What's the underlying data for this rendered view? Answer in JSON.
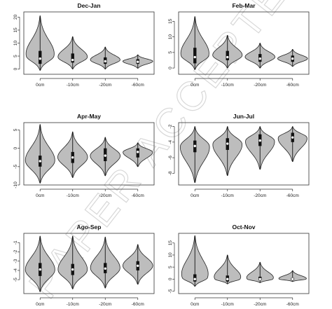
{
  "watermark": "PAPER ACCEPTED",
  "chart_data": [
    {
      "type": "violin",
      "title": "Dec-Jan",
      "categories": [
        "0cm",
        "-10cm",
        "-20cm",
        "-60cm"
      ],
      "ylim": [
        -2,
        22
      ],
      "yticks": [
        0,
        5,
        10,
        15,
        20
      ],
      "series": [
        {
          "category": "0cm",
          "min": -0.5,
          "max": 20.5,
          "q1": 2.0,
          "median": 4.0,
          "q3": 7.0,
          "mode": 5.0
        },
        {
          "category": "-10cm",
          "min": 0.0,
          "max": 12.5,
          "q1": 2.5,
          "median": 3.5,
          "q3": 6.0,
          "mode": 4.5
        },
        {
          "category": "-20cm",
          "min": 0.0,
          "max": 8.5,
          "q1": 2.0,
          "median": 3.0,
          "q3": 4.5,
          "mode": 3.5
        },
        {
          "category": "-60cm",
          "min": 0.3,
          "max": 5.5,
          "q1": 2.0,
          "median": 2.8,
          "q3": 3.8,
          "mode": 3.0
        }
      ]
    },
    {
      "type": "violin",
      "title": "Feb-Mar",
      "categories": [
        "0cm",
        "-10cm",
        "-20cm",
        "-60cm"
      ],
      "ylim": [
        -2,
        18
      ],
      "yticks": [
        0,
        5,
        10,
        15
      ],
      "series": [
        {
          "category": "0cm",
          "min": -0.5,
          "max": 16.5,
          "q1": 1.5,
          "median": 3.5,
          "q3": 6.5,
          "mode": 4.0
        },
        {
          "category": "-10cm",
          "min": 0.0,
          "max": 10.5,
          "q1": 2.5,
          "median": 3.5,
          "q3": 5.5,
          "mode": 4.0
        },
        {
          "category": "-20cm",
          "min": 0.0,
          "max": 8.0,
          "q1": 2.0,
          "median": 3.0,
          "q3": 4.5,
          "mode": 3.5
        },
        {
          "category": "-60cm",
          "min": 0.5,
          "max": 6.0,
          "q1": 2.0,
          "median": 3.0,
          "q3": 4.0,
          "mode": 3.0
        }
      ]
    },
    {
      "type": "violin",
      "title": "Apr-May",
      "categories": [
        "0cm",
        "-10cm",
        "-20cm",
        "-60cm"
      ],
      "ylim": [
        -10,
        7
      ],
      "yticks": [
        -10,
        -5,
        0,
        5
      ],
      "series": [
        {
          "category": "0cm",
          "min": -9.5,
          "max": 6.5,
          "q1": -5.0,
          "median": -3.5,
          "q3": -2.0,
          "mode": -3.5
        },
        {
          "category": "-10cm",
          "min": -8.0,
          "max": 4.5,
          "q1": -4.0,
          "median": -2.5,
          "q3": -1.0,
          "mode": -2.5
        },
        {
          "category": "-20cm",
          "min": -7.5,
          "max": 3.0,
          "q1": -3.5,
          "median": -2.0,
          "q3": 0.0,
          "mode": -2.0
        },
        {
          "category": "-60cm",
          "min": -5.0,
          "max": 1.5,
          "q1": -2.5,
          "median": -1.0,
          "q3": 0.0,
          "mode": -1.0
        }
      ]
    },
    {
      "type": "violin",
      "title": "Jun-Jul",
      "categories": [
        "0cm",
        "-10cm",
        "-20cm",
        "-60cm"
      ],
      "ylim": [
        -9.5,
        -1.5
      ],
      "yticks": [
        -8,
        -6,
        -4,
        -2
      ],
      "series": [
        {
          "category": "0cm",
          "min": -9.2,
          "max": -2.0,
          "q1": -5.3,
          "median": -4.5,
          "q3": -3.8,
          "mode": -4.5
        },
        {
          "category": "-10cm",
          "min": -8.3,
          "max": -2.0,
          "q1": -5.0,
          "median": -4.2,
          "q3": -3.5,
          "mode": -4.2
        },
        {
          "category": "-20cm",
          "min": -7.5,
          "max": -2.0,
          "q1": -4.5,
          "median": -3.8,
          "q3": -3.0,
          "mode": -3.8
        },
        {
          "category": "-60cm",
          "min": -6.5,
          "max": -2.0,
          "q1": -4.0,
          "median": -3.4,
          "q3": -2.8,
          "mode": -3.4
        }
      ]
    },
    {
      "type": "violin",
      "title": "Ago-Sep",
      "categories": [
        "0cm",
        "-10cm",
        "-20cm",
        "-60cm"
      ],
      "ylim": [
        -6.5,
        0
      ],
      "yticks": [
        -5,
        -4,
        -3,
        -2,
        -1
      ],
      "series": [
        {
          "category": "0cm",
          "min": -6.3,
          "max": -0.3,
          "q1": -4.6,
          "median": -3.9,
          "q3": -3.2,
          "mode": -4.0
        },
        {
          "category": "-10cm",
          "min": -6.0,
          "max": -0.3,
          "q1": -4.5,
          "median": -3.9,
          "q3": -3.3,
          "mode": -4.0
        },
        {
          "category": "-20cm",
          "min": -5.9,
          "max": -0.4,
          "q1": -4.3,
          "median": -3.8,
          "q3": -3.2,
          "mode": -3.8
        },
        {
          "category": "-60cm",
          "min": -5.5,
          "max": -1.2,
          "q1": -4.0,
          "median": -3.5,
          "q3": -3.0,
          "mode": -3.5
        }
      ]
    },
    {
      "type": "violin",
      "title": "Oct-Nov",
      "categories": [
        "0cm",
        "-10cm",
        "-20cm",
        "-60cm"
      ],
      "ylim": [
        -6,
        19
      ],
      "yticks": [
        -5,
        0,
        5,
        10,
        15
      ],
      "series": [
        {
          "category": "0cm",
          "min": -3.0,
          "max": 18.0,
          "q1": -1.0,
          "median": 0.0,
          "q3": 2.0,
          "mode": 0.5
        },
        {
          "category": "-10cm",
          "min": -2.0,
          "max": 10.0,
          "q1": -1.0,
          "median": 0.0,
          "q3": 1.5,
          "mode": 0.0
        },
        {
          "category": "-20cm",
          "min": -1.5,
          "max": 7.0,
          "q1": -0.5,
          "median": 0.0,
          "q3": 1.0,
          "mode": 0.0
        },
        {
          "category": "-60cm",
          "min": -1.0,
          "max": 3.5,
          "q1": -0.5,
          "median": 0.0,
          "q3": 0.5,
          "mode": 0.0
        }
      ]
    }
  ]
}
